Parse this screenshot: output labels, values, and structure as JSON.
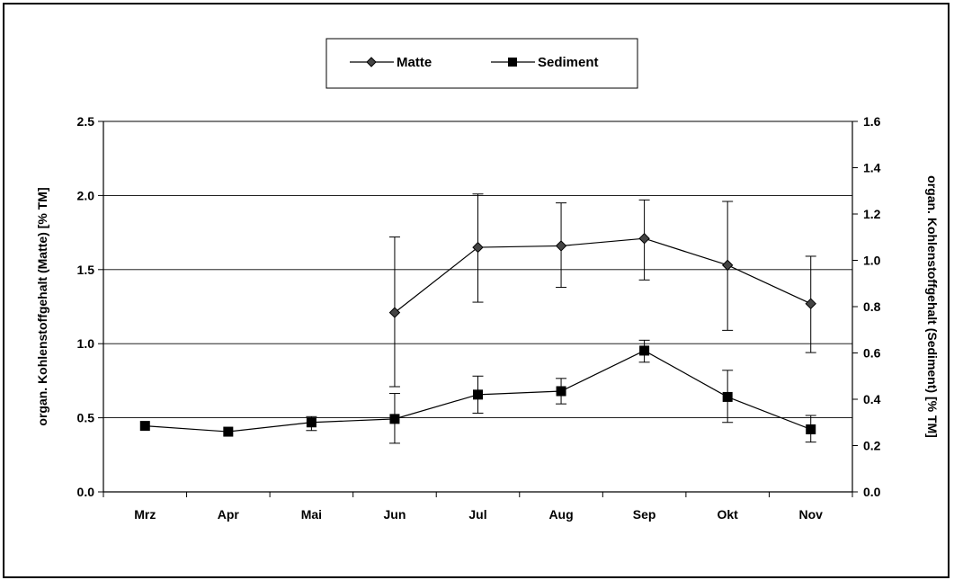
{
  "chart_data": {
    "type": "line",
    "categories": [
      "Mrz",
      "Apr",
      "Mai",
      "Jun",
      "Jul",
      "Aug",
      "Sep",
      "Okt",
      "Nov"
    ],
    "ylabel_left": "organ. Kohlenstoffgehalt (Matte) [% TM]",
    "ylabel_right": "organ. Kohlenstoffgehalt (Sediment) [% TM]",
    "ylim_left": [
      0,
      2.5
    ],
    "ylim_right": [
      0,
      1.6
    ],
    "yticks_left": [
      "0.0",
      "0.5",
      "1.0",
      "1.5",
      "2.0",
      "2.5"
    ],
    "yticks_right": [
      "0.0",
      "0.2",
      "0.4",
      "0.6",
      "0.8",
      "1.0",
      "1.2",
      "1.4",
      "1.6"
    ],
    "grid": true,
    "legend_position": "top-center",
    "series": [
      {
        "name": "Matte",
        "axis": "left",
        "marker": "diamond",
        "values": [
          null,
          null,
          null,
          1.21,
          1.65,
          1.66,
          1.71,
          1.53,
          1.27
        ],
        "err_low": [
          null,
          null,
          null,
          0.71,
          1.28,
          1.38,
          1.43,
          1.09,
          0.94
        ],
        "err_high": [
          null,
          null,
          null,
          1.72,
          2.01,
          1.95,
          1.97,
          1.96,
          1.59
        ]
      },
      {
        "name": "Sediment",
        "axis": "right",
        "marker": "square",
        "values": [
          0.285,
          0.26,
          0.3,
          0.315,
          0.42,
          0.435,
          0.61,
          0.41,
          0.27
        ],
        "err_low": [
          null,
          null,
          0.265,
          0.21,
          0.34,
          0.38,
          0.56,
          0.3,
          0.215
        ],
        "err_high": [
          null,
          null,
          0.325,
          0.425,
          0.5,
          0.49,
          0.655,
          0.525,
          0.33
        ]
      }
    ]
  }
}
